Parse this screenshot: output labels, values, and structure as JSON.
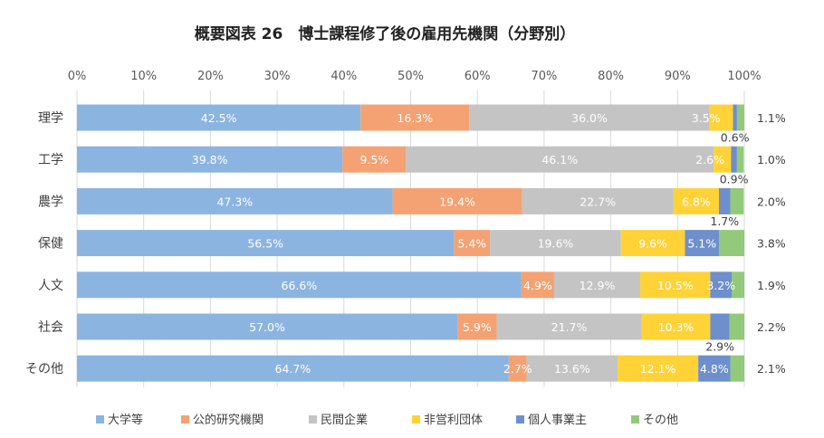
{
  "chart_data": {
    "type": "bar",
    "orientation": "horizontal",
    "stacked": "percent",
    "title": "概要図表 26　博士課程修了後の雇用先機関（分野別）",
    "categories": [
      "理学",
      "工学",
      "農学",
      "保健",
      "人文",
      "社会",
      "その他"
    ],
    "x_ticks": [
      "0%",
      "10%",
      "20%",
      "30%",
      "40%",
      "50%",
      "60%",
      "70%",
      "80%",
      "90%",
      "100%"
    ],
    "xlim": [
      0,
      100
    ],
    "grid": true,
    "legend_position": "bottom",
    "series": [
      {
        "name": "大学等",
        "color": "#8cb4e0",
        "values": [
          42.5,
          39.8,
          47.3,
          56.5,
          66.6,
          57.0,
          64.7
        ],
        "labels": [
          "42.5%",
          "39.8%",
          "47.3%",
          "56.5%",
          "66.6%",
          "57.0%",
          "64.7%"
        ]
      },
      {
        "name": "公的研究機関",
        "color": "#f4a273",
        "values": [
          16.3,
          9.5,
          19.4,
          5.4,
          4.9,
          5.9,
          2.7
        ],
        "labels": [
          "16.3%",
          "9.5%",
          "19.4%",
          "5.4%",
          "4.9%",
          "5.9%",
          "2.7%"
        ]
      },
      {
        "name": "民間企業",
        "color": "#c4c4c4",
        "values": [
          36.0,
          46.1,
          22.7,
          19.6,
          12.9,
          21.7,
          13.6
        ],
        "labels": [
          "36.0%",
          "46.1%",
          "22.7%",
          "19.6%",
          "12.9%",
          "21.7%",
          "13.6%"
        ]
      },
      {
        "name": "非営利団体",
        "color": "#ffd338",
        "values": [
          3.5,
          2.6,
          6.8,
          9.6,
          10.5,
          10.3,
          12.1
        ],
        "labels": [
          "3.5%",
          "2.6%",
          "6.8%",
          "9.6%",
          "10.5%",
          "10.3%",
          "12.1%"
        ]
      },
      {
        "name": "個人事業主",
        "color": "#6e8fcc",
        "values": [
          0.6,
          0.9,
          1.7,
          5.1,
          3.2,
          2.9,
          4.8
        ],
        "labels": [
          "0.6%",
          "0.9%",
          "1.7%",
          "5.1%",
          "3.2%",
          "2.9%",
          "4.8%"
        ]
      },
      {
        "name": "その他",
        "color": "#93c97b",
        "values": [
          1.1,
          1.0,
          2.0,
          3.8,
          1.9,
          2.2,
          2.1
        ],
        "labels": [
          "1.1%",
          "1.0%",
          "2.0%",
          "3.8%",
          "1.9%",
          "2.2%",
          "2.1%"
        ]
      }
    ]
  }
}
